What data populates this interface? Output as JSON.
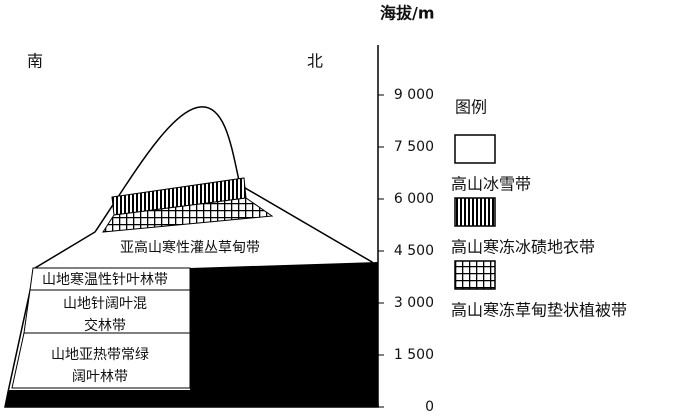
{
  "axis": {
    "label": "海拔/m",
    "ticks": [
      {
        "value": 0,
        "label": "0"
      },
      {
        "value": 1500,
        "label": "1 500"
      },
      {
        "value": 3000,
        "label": "3 000"
      },
      {
        "value": 4500,
        "label": "4 500"
      },
      {
        "value": 6000,
        "label": "6 000"
      },
      {
        "value": 7500,
        "label": "7 500"
      },
      {
        "value": 9000,
        "label": "9 000"
      }
    ]
  },
  "directions": {
    "south": "南",
    "north": "北"
  },
  "zones": [
    {
      "lines": [
        "亚高山寒性灌丛草甸带"
      ]
    },
    {
      "lines": [
        "山地寒温性针叶林带"
      ]
    },
    {
      "lines": [
        "山地针阔叶混",
        "交林带"
      ]
    },
    {
      "lines": [
        "山地亚热带常绿",
        "阔叶林带"
      ]
    }
  ],
  "legend": {
    "title": "图例",
    "items": [
      {
        "label": "高山冰雪带"
      },
      {
        "label": "高山寒冻冰碛地衣带"
      },
      {
        "label": "高山寒冻草甸垫状植被带"
      }
    ]
  }
}
